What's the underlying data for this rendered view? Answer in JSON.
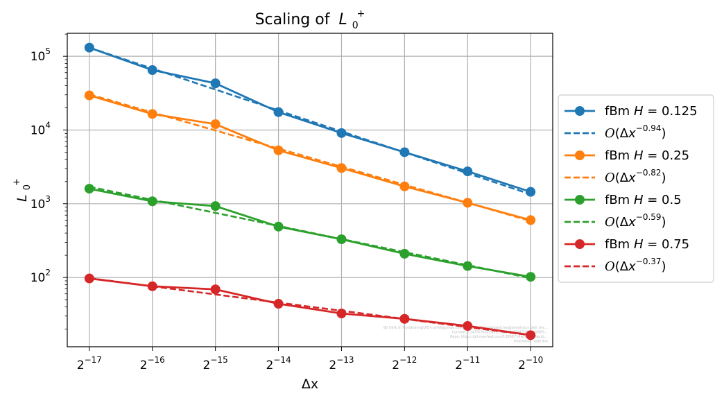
{
  "chart_data": {
    "type": "line",
    "title": "Scaling of",
    "title_math": {
      "base": "L",
      "sub": "0",
      "sup": "+"
    },
    "xlabel": "Δx",
    "ylabel": {
      "base": "L",
      "sub": "0",
      "sup": "+"
    },
    "x_scale": "log2",
    "y_scale": "log10",
    "x": [
      -17,
      -16,
      -15,
      -14,
      -13,
      -12,
      -11,
      -10
    ],
    "x_tick_labels": [
      {
        "base": "2",
        "exp": "−17"
      },
      {
        "base": "2",
        "exp": "−16"
      },
      {
        "base": "2",
        "exp": "−15"
      },
      {
        "base": "2",
        "exp": "−14"
      },
      {
        "base": "2",
        "exp": "−13"
      },
      {
        "base": "2",
        "exp": "−12"
      },
      {
        "base": "2",
        "exp": "−11"
      },
      {
        "base": "2",
        "exp": "−10"
      }
    ],
    "y_tick_labels": [
      {
        "base": "10",
        "exp": "2",
        "value": 100
      },
      {
        "base": "10",
        "exp": "3",
        "value": 1000
      },
      {
        "base": "10",
        "exp": "4",
        "value": 10000
      },
      {
        "base": "10",
        "exp": "5",
        "value": 100000
      }
    ],
    "xlim": [
      -17.35,
      -9.65
    ],
    "ylim": [
      11.5,
      205000
    ],
    "grid": true,
    "legend_position": "outside right",
    "series": [
      {
        "name": "fBm H = 0.125",
        "label_prefix": "fBm",
        "label_var": "H",
        "label_value": "= 0.125",
        "color": "#1f77b4",
        "style": "solid-marker",
        "values": [
          131000,
          65000,
          43000,
          17500,
          9100,
          5000,
          2750,
          1450
        ]
      },
      {
        "name": "O(Δx^-0.94)",
        "label_exp": "−0.94",
        "color": "#1f77b4",
        "style": "dashed",
        "values": [
          131000,
          68100,
          35400,
          18400,
          9570,
          4980,
          2590,
          1344
        ]
      },
      {
        "name": "fBm H = 0.25",
        "label_prefix": "fBm",
        "label_var": "H",
        "label_value": "= 0.25",
        "color": "#ff7f0e",
        "style": "solid-marker",
        "values": [
          29500,
          16500,
          12000,
          5300,
          3050,
          1720,
          1030,
          600
        ]
      },
      {
        "name": "O(Δx^-0.82)",
        "label_exp": "−0.82",
        "color": "#ff7f0e",
        "style": "dashed",
        "values": [
          30500,
          17300,
          9860,
          5600,
          3180,
          1810,
          1030,
          584
        ]
      },
      {
        "name": "fBm H = 0.5",
        "label_prefix": "fBm",
        "label_var": "H",
        "label_value": "= 0.5",
        "color": "#2ca02c",
        "style": "solid-marker",
        "values": [
          1600,
          1080,
          930,
          490,
          330,
          210,
          143,
          102
        ]
      },
      {
        "name": "O(Δx^-0.59)",
        "label_exp": "−0.59",
        "color": "#2ca02c",
        "style": "dashed",
        "values": [
          1700,
          1130,
          752,
          500,
          332,
          221,
          147,
          97.8
        ]
      },
      {
        "name": "fBm H = 0.75",
        "label_prefix": "fBm",
        "label_var": "H",
        "label_value": "= 0.75",
        "color": "#d62728",
        "style": "solid-marker",
        "values": [
          97,
          76,
          69,
          44,
          32.5,
          27.5,
          22,
          16.5
        ]
      },
      {
        "name": "O(Δx^-0.37)",
        "label_exp": "−0.37",
        "color": "#d62728",
        "style": "dashed",
        "values": [
          98,
          75.9,
          58.9,
          45.6,
          35.4,
          27.4,
          21.3,
          16.5
        ]
      }
    ],
    "watermark": [
      "By Ulrik S. Fjordholm@UiO<ulrikf@gmail.com> and Kjetil Lye@kjetil.lye@sintef.no> with the...",
      "Commit: d147f070d2e431c6f8c90a37f42b6b1eb90f9...",
      "Repo: https://git.overleaf.com/10966714wnmkchfaqsb...",
      "Hostname: galerkin"
    ]
  }
}
